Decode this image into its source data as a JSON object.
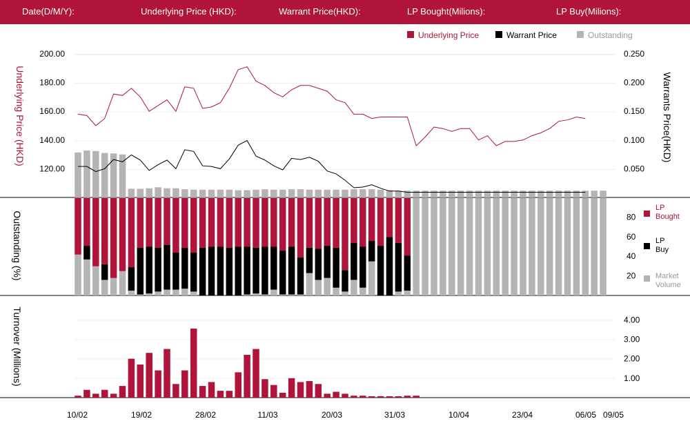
{
  "header": {
    "date_label": "Date(D/M/Y):",
    "underlying_label": "Underlying Price (HKD):",
    "warrant_label": "Warrant  Price(HKD):",
    "lp_bought_label": "LP Bought(Milions):",
    "lp_buy_label": "LP Buy(Milions):"
  },
  "colors": {
    "header": "#b0143a",
    "underlying": "#b0143a",
    "warrant": "#000000",
    "outstanding": "#b4b4b4",
    "bought": "#b0143a",
    "buy": "#000000",
    "turnover": "#b0143a"
  },
  "chart_data": [
    {
      "type": "line",
      "name": "price-chart",
      "ylabel": "Underlying Price (HKD)",
      "y2label": "Warrants  Price(HKD)",
      "ylim": [
        100,
        200
      ],
      "y2lim": [
        0,
        0.25
      ],
      "yticks": [
        "200.00",
        "180.00",
        "160.00",
        "140.00",
        "120.00"
      ],
      "y2ticks": [
        "0.250",
        "0.200",
        "0.150",
        "0.100",
        "0.050"
      ],
      "legend_position": "top-right",
      "legend": [
        "Underlying Price",
        "Warrant  Price",
        "Outstanding"
      ],
      "series": [
        {
          "name": "Underlying Price",
          "values": [
            158,
            157,
            150,
            155,
            172,
            171,
            176,
            170,
            160,
            164,
            168,
            160,
            177,
            176,
            162,
            163,
            166,
            176,
            189,
            191,
            181,
            178,
            173,
            170,
            175,
            178,
            178,
            176,
            174,
            168,
            166,
            158,
            158,
            155,
            156,
            156,
            156,
            156,
            136,
            142,
            149,
            148,
            146,
            148,
            148,
            140,
            143,
            136,
            139,
            139,
            140,
            143,
            145,
            148,
            153,
            154,
            156,
            155
          ]
        },
        {
          "name": "Warrant  Price",
          "values": [
            0.054,
            0.054,
            0.045,
            0.05,
            0.066,
            0.062,
            0.074,
            0.065,
            0.047,
            0.057,
            0.065,
            0.05,
            0.083,
            0.08,
            0.055,
            0.054,
            0.05,
            0.067,
            0.091,
            0.099,
            0.072,
            0.065,
            0.055,
            0.048,
            0.068,
            0.066,
            0.07,
            0.063,
            0.046,
            0.041,
            0.03,
            0.017,
            0.018,
            0.022,
            0.016,
            0.011,
            0.011,
            0.009,
            0.009,
            0.009,
            0.009,
            0.009,
            0.009,
            0.009,
            0.009,
            0.009,
            0.009,
            0.009,
            0.009,
            0.009,
            0.009,
            0.009,
            0.009,
            0.009,
            0.009,
            0.009,
            0.009,
            0.009
          ]
        }
      ]
    },
    {
      "type": "bar",
      "name": "outstanding-chart",
      "ylabel": "Outstanding (%)",
      "ylim": [
        0,
        100
      ],
      "yticks": [
        "80",
        "60",
        "40",
        "20"
      ],
      "legend": [
        "LP Bought",
        "LP Buy",
        "Market Volume"
      ],
      "outstanding": [
        93,
        97,
        96,
        92,
        91,
        89,
        18,
        18,
        19,
        21,
        19,
        19,
        17,
        16,
        16,
        16,
        16,
        16,
        15,
        15,
        16,
        17,
        16,
        16,
        17,
        17,
        16,
        16,
        16,
        16,
        16,
        17,
        17,
        17,
        16,
        15,
        14,
        14,
        14,
        14,
        14,
        14,
        14,
        14,
        14,
        14,
        14,
        14,
        14,
        14,
        14,
        14,
        14,
        14,
        14,
        14,
        14,
        14,
        14,
        14
      ],
      "lp_bought": [
        58,
        49,
        70,
        68,
        82,
        75,
        71,
        51,
        50,
        51,
        48,
        56,
        51,
        56,
        51,
        50,
        50,
        51,
        50,
        50,
        51,
        50,
        50,
        54,
        50,
        61,
        51,
        52,
        49,
        51,
        74,
        46,
        50,
        44,
        49,
        40,
        46,
        59,
        null,
        null,
        null,
        null,
        null,
        null,
        null,
        null,
        null,
        null,
        null,
        null,
        null,
        null,
        null,
        null,
        null,
        null,
        null,
        null,
        null,
        null
      ],
      "lp_buy": [
        42,
        51,
        30,
        18,
        16,
        25,
        29,
        49,
        50,
        49,
        52,
        44,
        49,
        44,
        49,
        50,
        50,
        49,
        50,
        50,
        49,
        50,
        50,
        46,
        50,
        39,
        49,
        48,
        51,
        49,
        26,
        54,
        50,
        56,
        51,
        60,
        54,
        41,
        null,
        null,
        null,
        null,
        null,
        null,
        null,
        null,
        null,
        null,
        null,
        null,
        null,
        null,
        null,
        null,
        null,
        null,
        null,
        null,
        null,
        null
      ],
      "market_volume": [
        42,
        37,
        70,
        16,
        77,
        25,
        5,
        1,
        2,
        4,
        6,
        6,
        7,
        4,
        0,
        0,
        0,
        0,
        0,
        1,
        2,
        1,
        6,
        1,
        1,
        1,
        23,
        16,
        18,
        8,
        4,
        16,
        8,
        35,
        0,
        0,
        4,
        5,
        100,
        100,
        100,
        100,
        100,
        100,
        100,
        100,
        100,
        100,
        100,
        100,
        100,
        100,
        100,
        100,
        100,
        100,
        100,
        100,
        100,
        100
      ]
    },
    {
      "type": "bar",
      "name": "turnover-chart",
      "ylabel": "Turnover (Millions)",
      "ylim": [
        0,
        4.4
      ],
      "yticks": [
        "4.00",
        "3.00",
        "2.00",
        "1.00"
      ],
      "values": [
        0.1,
        0.4,
        0.2,
        0.4,
        0.2,
        0.6,
        2.0,
        1.7,
        2.3,
        1.4,
        2.5,
        0.7,
        1.4,
        3.55,
        0.6,
        0.8,
        0.35,
        0.35,
        1.3,
        2.2,
        2.5,
        0.95,
        0.65,
        0.25,
        1.0,
        0.8,
        0.85,
        0.7,
        0.2,
        0.3,
        0.2,
        0.1,
        0.1,
        0.05,
        0.05,
        0.05,
        0.05,
        0.1,
        0.1,
        0,
        0,
        0,
        0,
        0,
        0,
        0,
        0,
        0,
        0,
        0,
        0,
        0,
        0,
        0,
        0,
        0,
        0,
        0,
        0,
        0
      ]
    }
  ],
  "x_ticks": [
    "10/02",
    "19/02",
    "28/02",
    "11/03",
    "20/03",
    "31/03",
    "10/04",
    "23/04",
    "06/05",
    "09/05"
  ]
}
